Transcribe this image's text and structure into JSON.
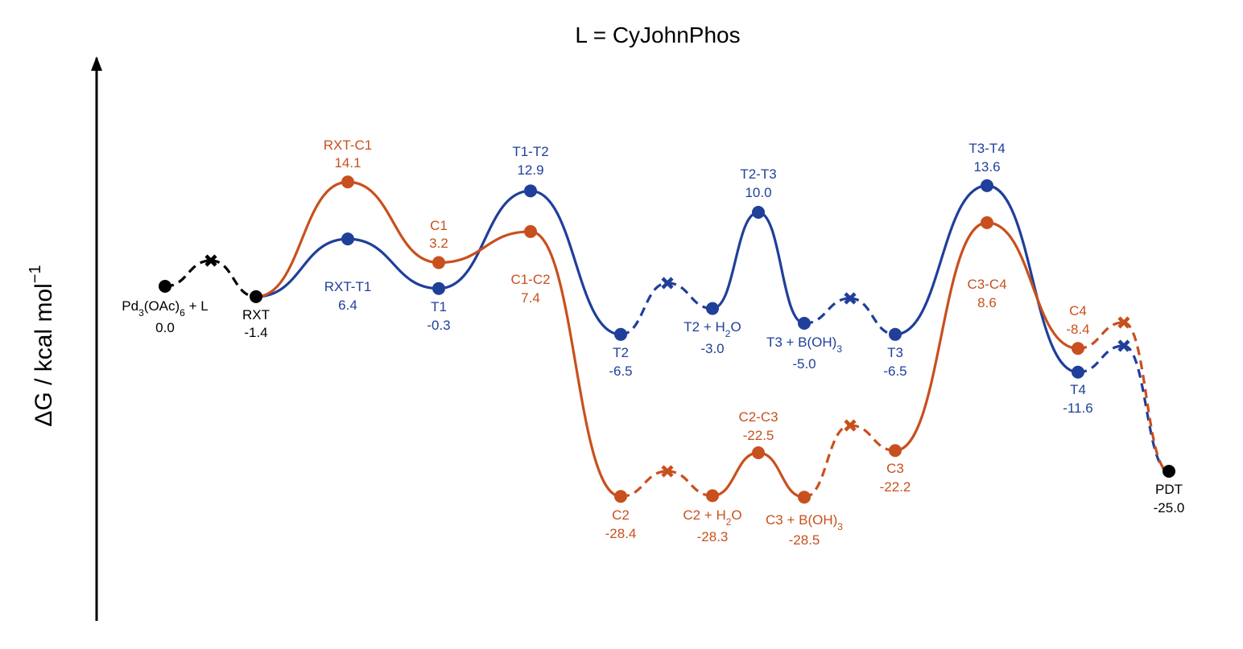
{
  "chart_data": {
    "type": "line",
    "title": "L = CyJohnPhos",
    "ylabel": "ΔG / kcal mol",
    "ylabel_superscript": "−1",
    "colors": {
      "common": "#000000",
      "T": "#1f3f9a",
      "C": "#c8501e"
    },
    "common_points": [
      {
        "id": "start",
        "label": "Pd3(OAc)6 + L",
        "value": 0.0,
        "value_text": "0.0"
      },
      {
        "id": "RXT",
        "label": "RXT",
        "value": -1.4,
        "value_text": "-1.4"
      },
      {
        "id": "PDT",
        "label": "PDT",
        "value": -25.0,
        "value_text": "-25.0"
      }
    ],
    "label_parts": {
      "start": {
        "a": "Pd",
        "sub1": "3",
        "b": "(OAc)",
        "sub2": "6",
        "c": " + L"
      },
      "T2H2O": {
        "a": "T2 + H",
        "sub": "2",
        "b": "O"
      },
      "T3BOH3": {
        "a": "T3 + B(OH)",
        "sub": "3"
      },
      "C2H2O": {
        "a": "C2 + H",
        "sub": "2",
        "b": "O"
      },
      "C3BOH3": {
        "a": "C3 + B(OH)",
        "sub": "3"
      }
    },
    "series": [
      {
        "name": "T",
        "color": "T",
        "points": [
          {
            "id": "RXT-T1",
            "label": "RXT-T1",
            "value": 6.4,
            "value_text": "6.4"
          },
          {
            "id": "T1",
            "label": "T1",
            "value": -0.3,
            "value_text": "-0.3"
          },
          {
            "id": "T1-T2",
            "label": "T1-T2",
            "value": 12.9,
            "value_text": "12.9"
          },
          {
            "id": "T2",
            "label": "T2",
            "value": -6.5,
            "value_text": "-6.5"
          },
          {
            "id": "T2H2O",
            "label": "T2 + H2O",
            "value": -3.0,
            "value_text": "-3.0"
          },
          {
            "id": "T2-T3",
            "label": "T2-T3",
            "value": 10.0,
            "value_text": "10.0"
          },
          {
            "id": "T3BOH3",
            "label": "T3 + B(OH)3",
            "value": -5.0,
            "value_text": "-5.0"
          },
          {
            "id": "T3",
            "label": "T3",
            "value": -6.5,
            "value_text": "-6.5"
          },
          {
            "id": "T3-T4",
            "label": "T3-T4",
            "value": 13.6,
            "value_text": "13.6"
          },
          {
            "id": "T4",
            "label": "T4",
            "value": -11.6,
            "value_text": "-11.6"
          }
        ]
      },
      {
        "name": "C",
        "color": "C",
        "points": [
          {
            "id": "RXT-C1",
            "label": "RXT-C1",
            "value": 14.1,
            "value_text": "14.1"
          },
          {
            "id": "C1",
            "label": "C1",
            "value": 3.2,
            "value_text": "3.2"
          },
          {
            "id": "C1-C2",
            "label": "C1-C2",
            "value": 7.4,
            "value_text": "7.4"
          },
          {
            "id": "C2",
            "label": "C2",
            "value": -28.4,
            "value_text": "-28.4"
          },
          {
            "id": "C2H2O",
            "label": "C2 + H2O",
            "value": -28.3,
            "value_text": "-28.3"
          },
          {
            "id": "C2-C3",
            "label": "C2-C3",
            "value": -22.5,
            "value_text": "-22.5"
          },
          {
            "id": "C3BOH3",
            "label": "C3 + B(OH)3",
            "value": -28.5,
            "value_text": "-28.5"
          },
          {
            "id": "C3",
            "label": "C3",
            "value": -22.2,
            "value_text": "-22.2"
          },
          {
            "id": "C3-C4",
            "label": "C3-C4",
            "value": 8.6,
            "value_text": "8.6"
          },
          {
            "id": "C4",
            "label": "C4",
            "value": -8.4,
            "value_text": "-8.4"
          }
        ]
      }
    ]
  }
}
